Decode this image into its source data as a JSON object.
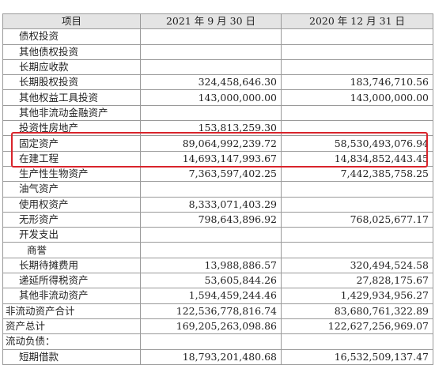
{
  "table": {
    "headers": [
      "项目",
      "2021 年 9 月 30 日",
      "2020 年 12 月 31 日"
    ],
    "rows": [
      {
        "label": "债权投资",
        "v2021": "",
        "v2020": "",
        "indent": 1
      },
      {
        "label": "其他债权投资",
        "v2021": "",
        "v2020": "",
        "indent": 1
      },
      {
        "label": "长期应收款",
        "v2021": "",
        "v2020": "",
        "indent": 1
      },
      {
        "label": "长期股权投资",
        "v2021": "324,458,646.30",
        "v2020": "183,746,710.56",
        "indent": 1
      },
      {
        "label": "其他权益工具投资",
        "v2021": "143,000,000.00",
        "v2020": "143,000,000.00",
        "indent": 1
      },
      {
        "label": "其他非流动金融资产",
        "v2021": "",
        "v2020": "",
        "indent": 1
      },
      {
        "label": "投资性房地产",
        "v2021": "153,813,259.30",
        "v2020": "",
        "indent": 1
      },
      {
        "label": "固定资产",
        "v2021": "89,064,992,239.72",
        "v2020": "58,530,493,076.94",
        "indent": 1
      },
      {
        "label": "在建工程",
        "v2021": "14,693,147,993.67",
        "v2020": "14,834,852,443.45",
        "indent": 1
      },
      {
        "label": "生产性生物资产",
        "v2021": "7,363,597,402.25",
        "v2020": "7,442,385,758.25",
        "indent": 1
      },
      {
        "label": "油气资产",
        "v2021": "",
        "v2020": "",
        "indent": 1
      },
      {
        "label": "使用权资产",
        "v2021": "8,333,071,403.29",
        "v2020": "",
        "indent": 1
      },
      {
        "label": "无形资产",
        "v2021": "798,643,896.92",
        "v2020": "768,025,677.17",
        "indent": 1
      },
      {
        "label": "开发支出",
        "v2021": "",
        "v2020": "",
        "indent": 1
      },
      {
        "label": "商誉",
        "v2021": "",
        "v2020": "",
        "indent": 2
      },
      {
        "label": "长期待摊费用",
        "v2021": "13,988,886.57",
        "v2020": "320,494,524.58",
        "indent": 1
      },
      {
        "label": "递延所得税资产",
        "v2021": "53,605,844.26",
        "v2020": "27,828,175.67",
        "indent": 1
      },
      {
        "label": "其他非流动资产",
        "v2021": "1,594,459,244.46",
        "v2020": "1,429,934,956.27",
        "indent": 1
      },
      {
        "label": "非流动资产合计",
        "v2021": "122,536,778,816.74",
        "v2020": "83,680,761,322.89",
        "indent": 0
      },
      {
        "label": "资产总计",
        "v2021": "169,205,263,098.86",
        "v2020": "122,627,256,969.07",
        "indent": 0
      },
      {
        "label": "流动负债：",
        "v2021": "",
        "v2020": "",
        "indent": 0
      },
      {
        "label": "短期借款",
        "v2021": "18,793,201,480.68",
        "v2020": "16,532,509,137.47",
        "indent": 1
      }
    ]
  },
  "highlight_color": "#d9242b"
}
